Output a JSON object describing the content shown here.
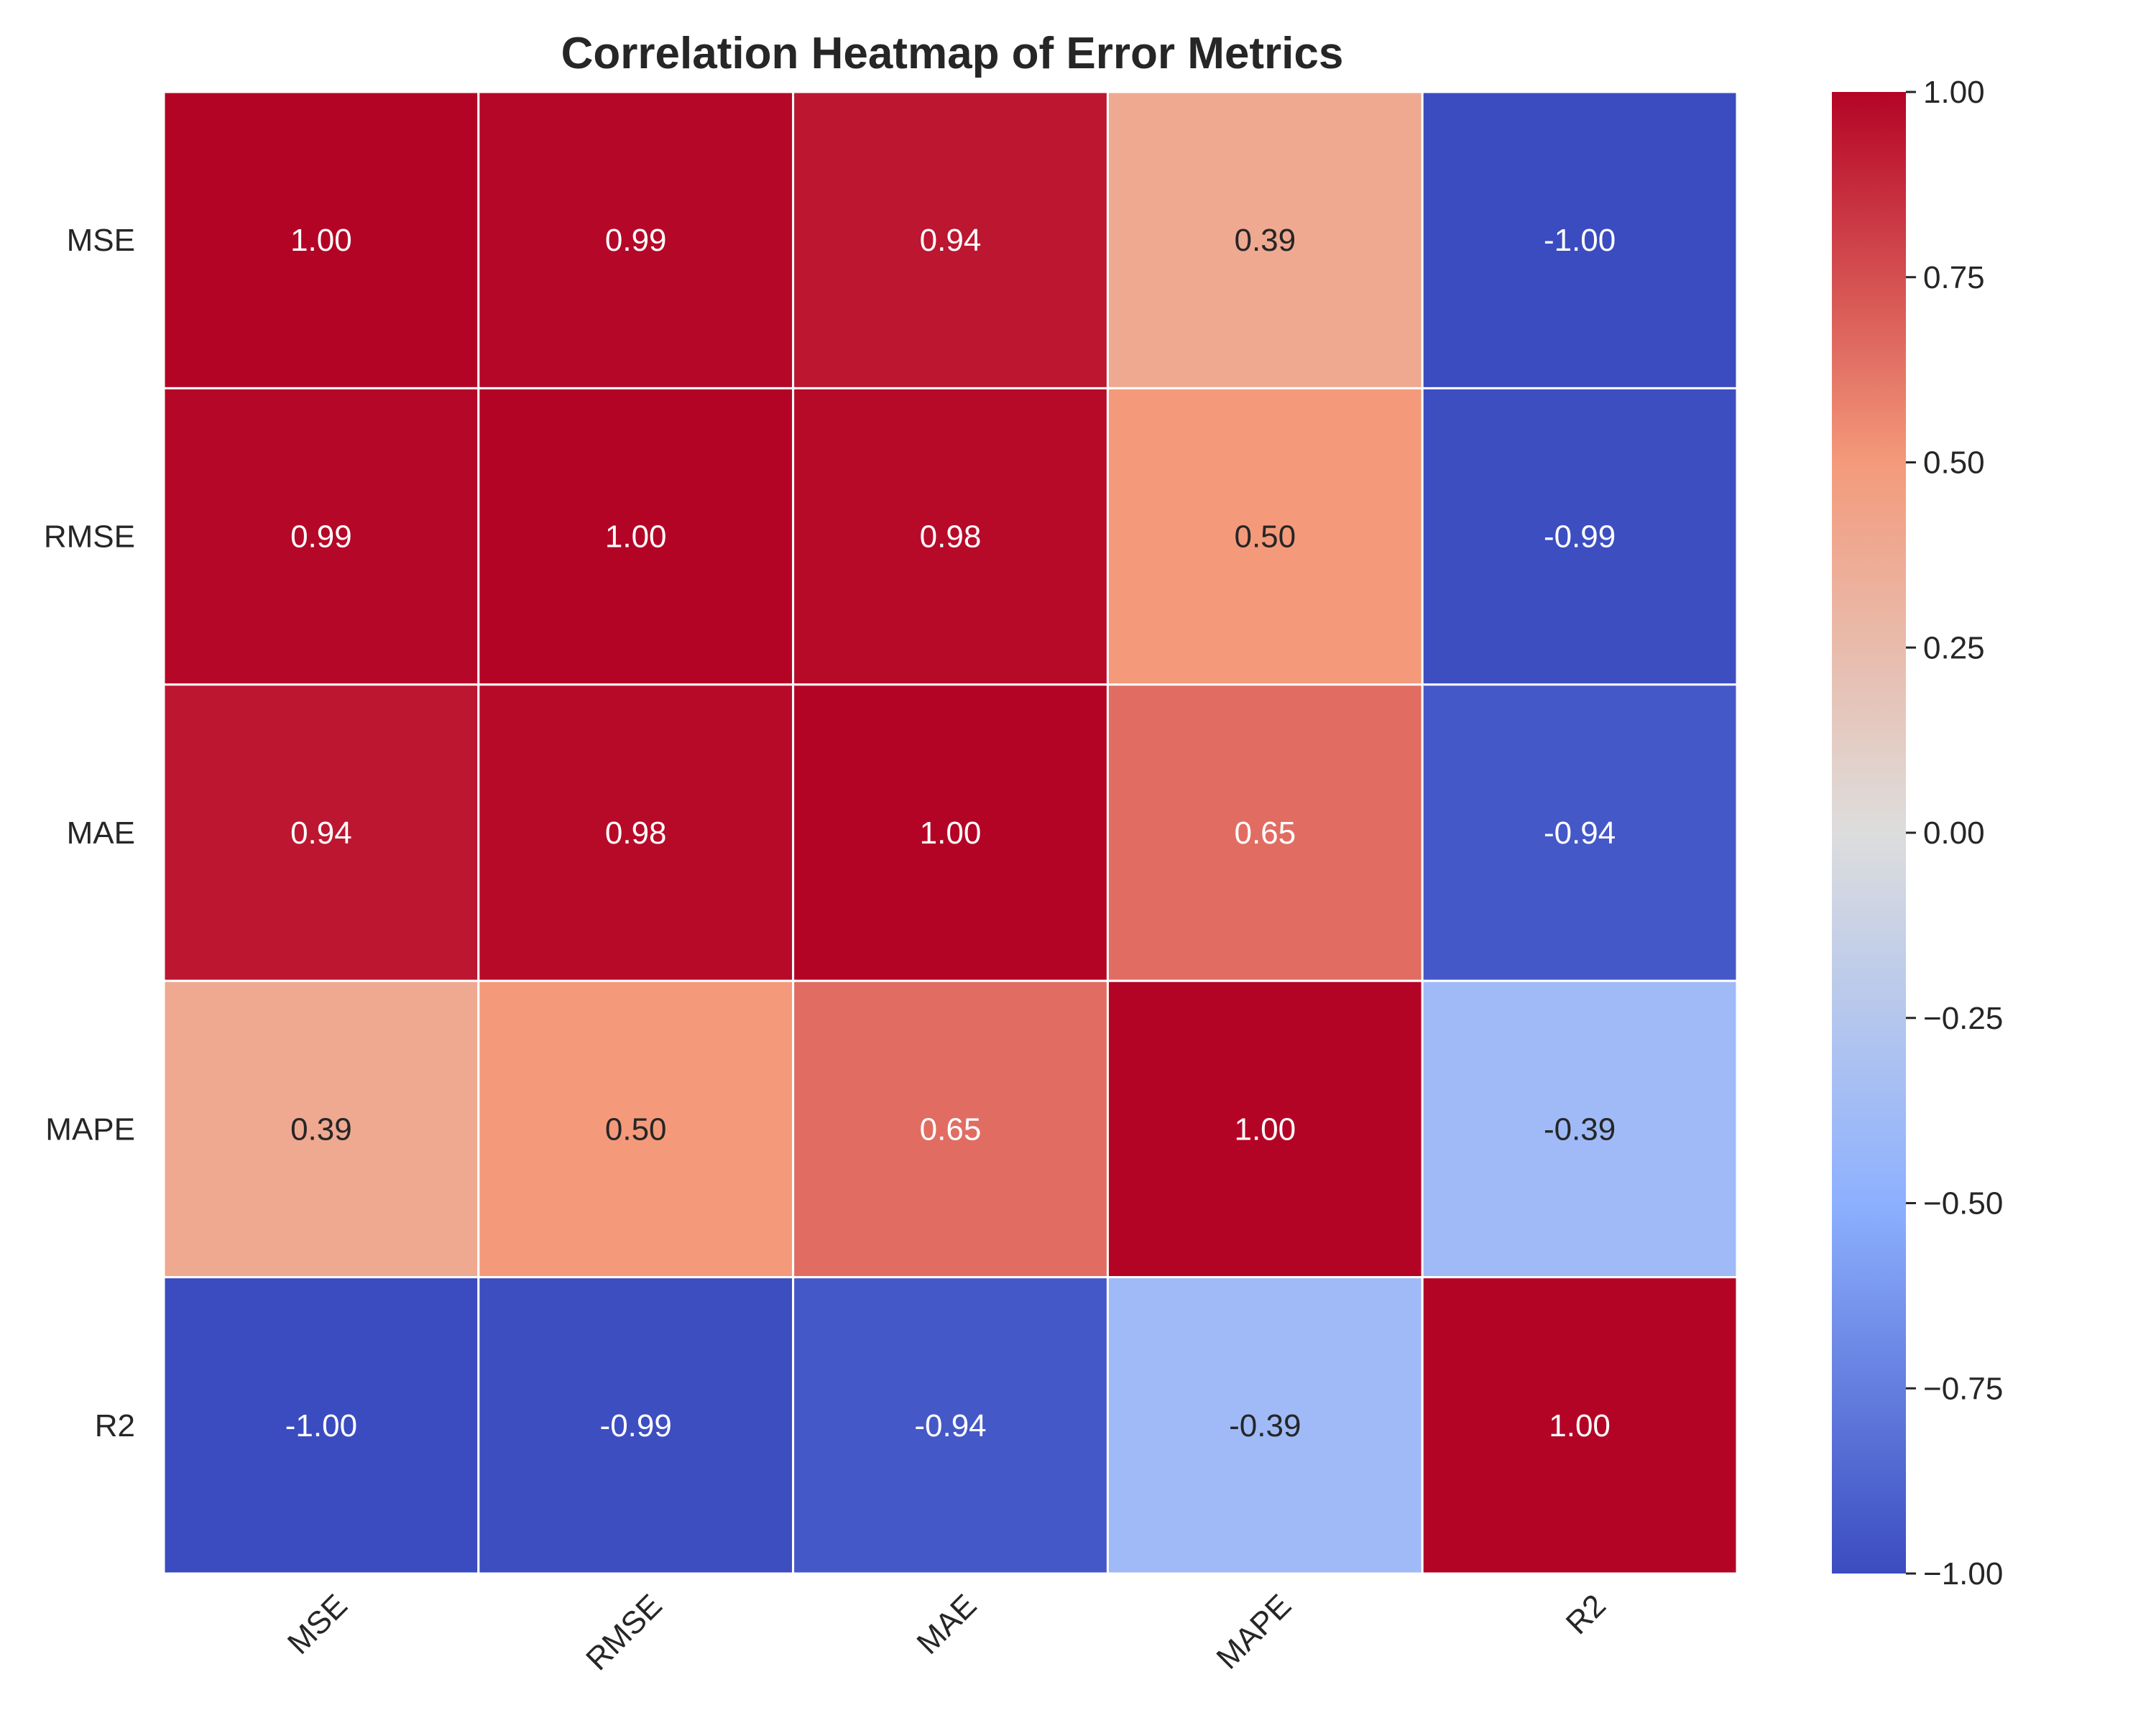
{
  "chart_data": {
    "type": "heatmap",
    "title": "Correlation Heatmap of Error Metrics",
    "xlabel": "",
    "ylabel": "",
    "x_categories": [
      "MSE",
      "RMSE",
      "MAE",
      "MAPE",
      "R2"
    ],
    "y_categories": [
      "MSE",
      "RMSE",
      "MAE",
      "MAPE",
      "R2"
    ],
    "values": [
      [
        1.0,
        0.99,
        0.94,
        0.39,
        -1.0
      ],
      [
        0.99,
        1.0,
        0.98,
        0.5,
        -0.99
      ],
      [
        0.94,
        0.98,
        1.0,
        0.65,
        -0.94
      ],
      [
        0.39,
        0.5,
        0.65,
        1.0,
        -0.39
      ],
      [
        -1.0,
        -0.99,
        -0.94,
        -0.39,
        1.0
      ]
    ],
    "annotations": [
      [
        "1.00",
        "0.99",
        "0.94",
        "0.39",
        "-1.00"
      ],
      [
        "0.99",
        "1.00",
        "0.98",
        "0.50",
        "-0.99"
      ],
      [
        "0.94",
        "0.98",
        "1.00",
        "0.65",
        "-0.94"
      ],
      [
        "0.39",
        "0.50",
        "0.65",
        "1.00",
        "-0.39"
      ],
      [
        "-1.00",
        "-0.99",
        "-0.94",
        "-0.39",
        "1.00"
      ]
    ],
    "colormap": "coolwarm",
    "vmin": -1.0,
    "vmax": 1.0,
    "colorbar_ticks": [
      1.0,
      0.75,
      0.5,
      0.25,
      0.0,
      -0.25,
      -0.5,
      -0.75,
      -1.0
    ],
    "colorbar_tick_labels": [
      "1.00",
      "0.75",
      "0.50",
      "0.25",
      "0.00",
      "−0.25",
      "−0.50",
      "−0.75",
      "−1.00"
    ],
    "x_tick_rotation": 45,
    "grid": false,
    "cell_line_color": "#ffffff"
  }
}
